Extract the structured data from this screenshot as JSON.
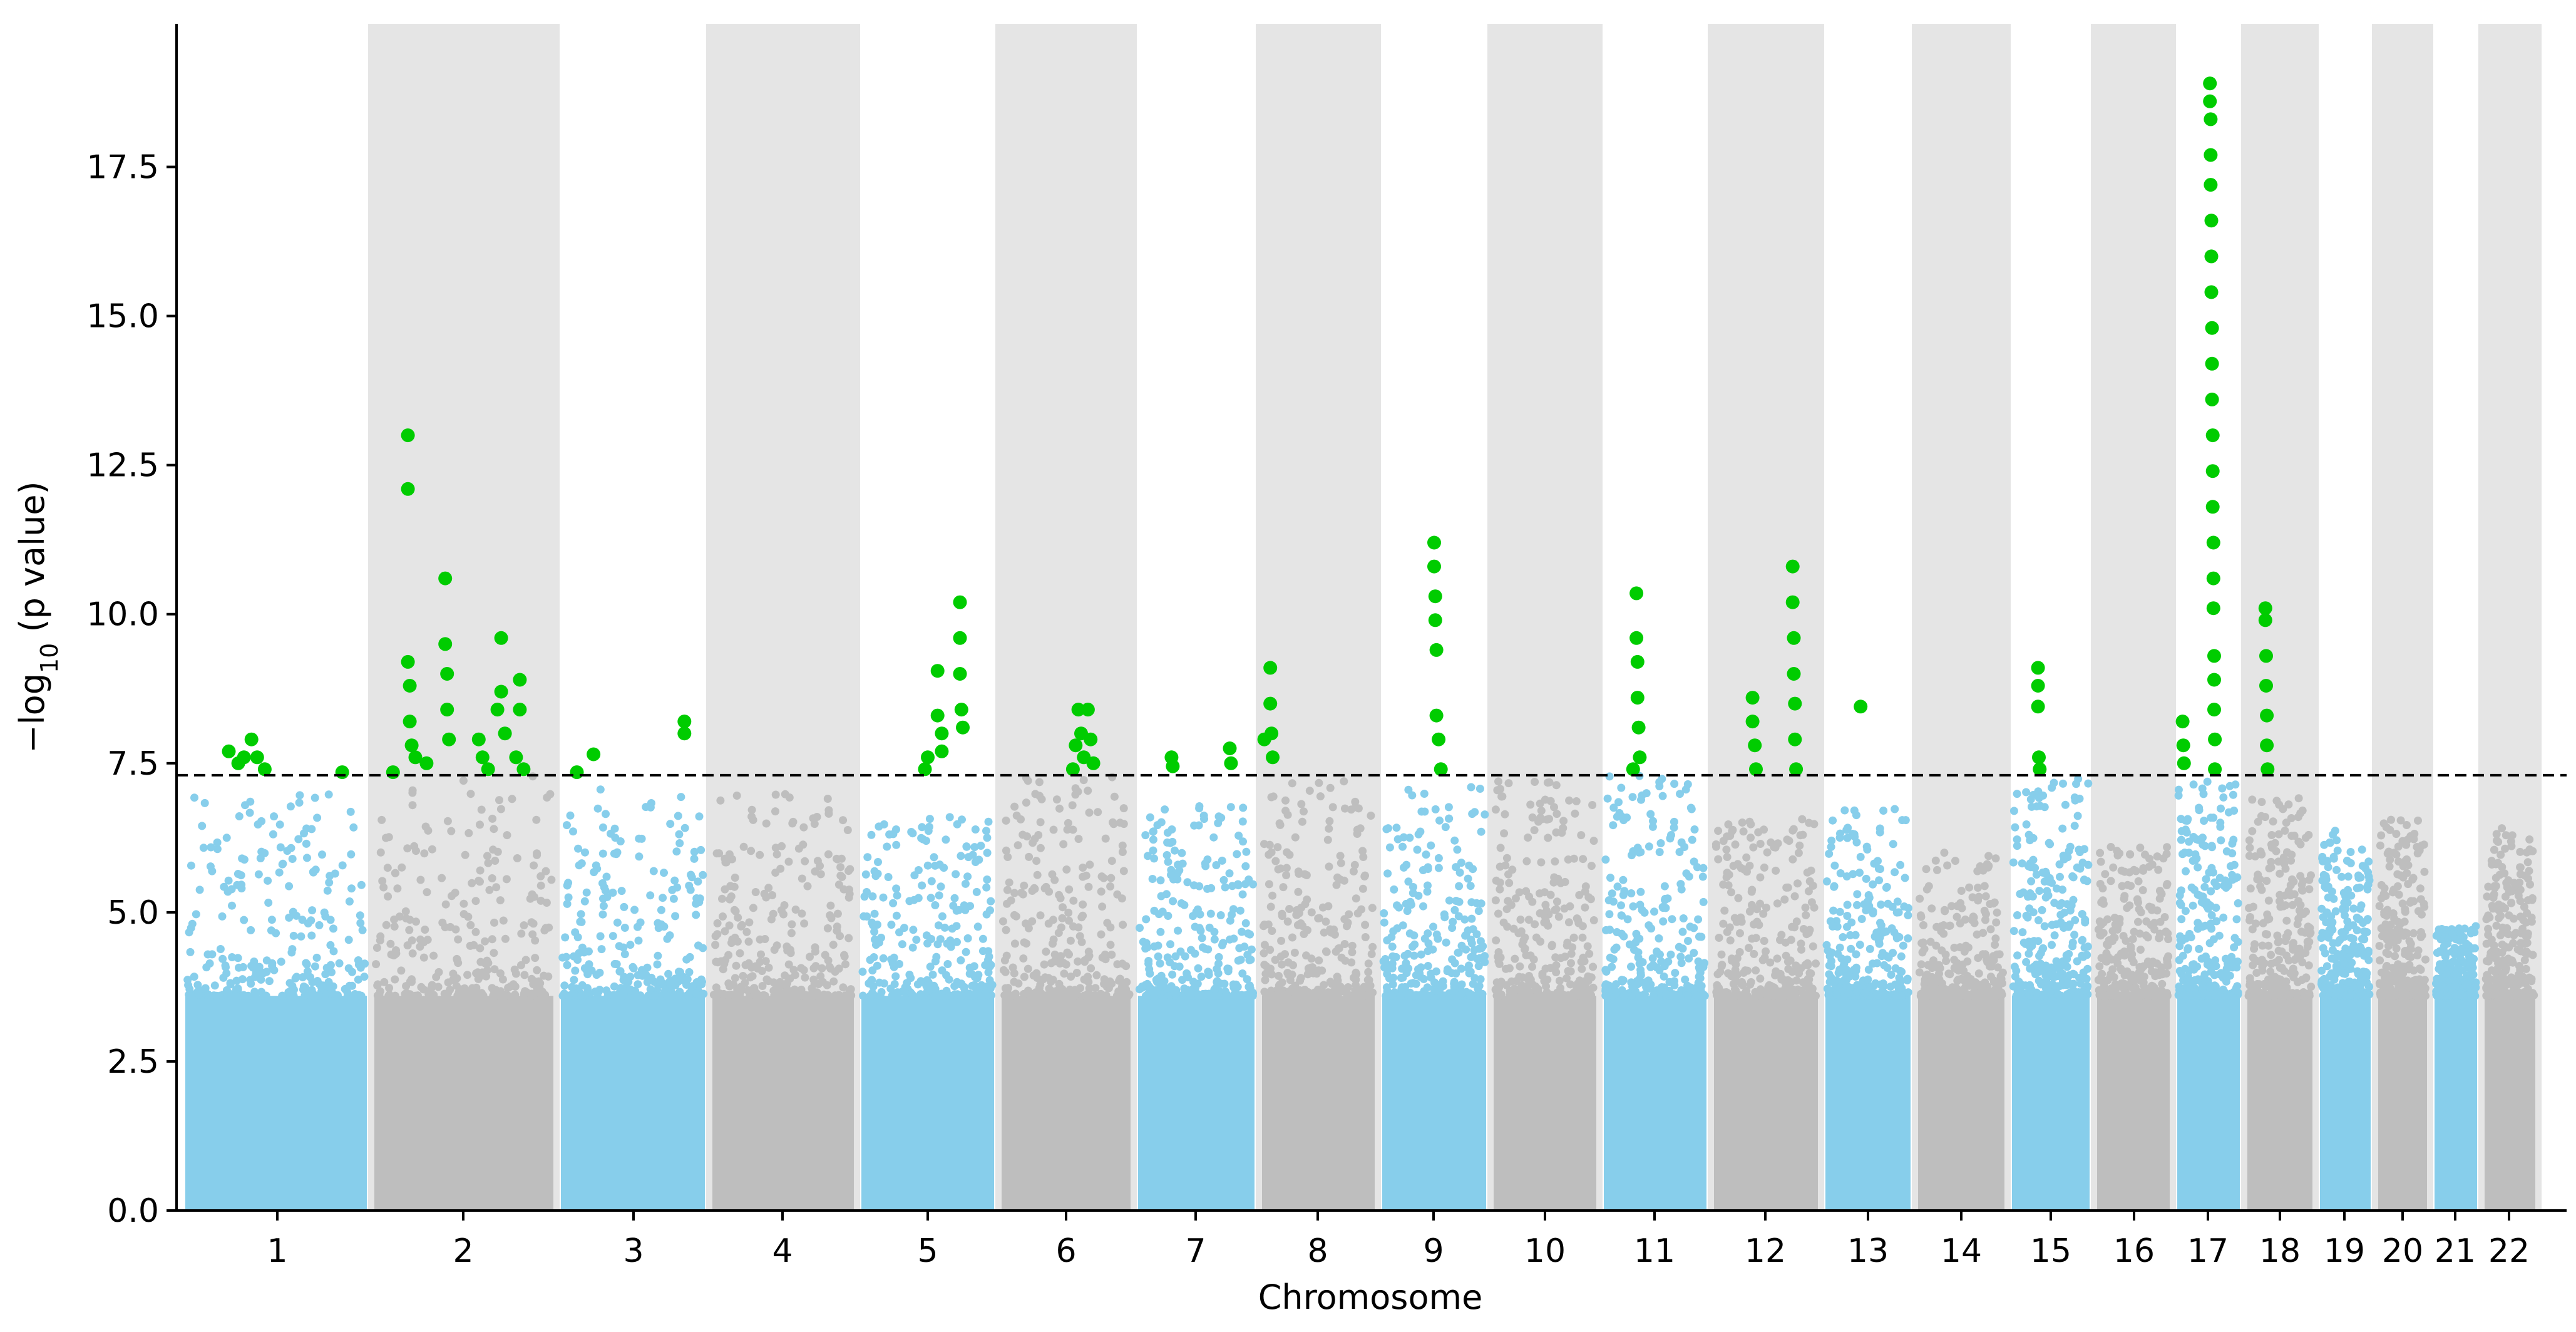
{
  "chart_data": {
    "type": "scatter",
    "subtype": "manhattan",
    "xlabel": "Chromosome",
    "ylabel_prefix": "−log",
    "ylabel_sub": "10",
    "ylabel_suffix": " (p value)",
    "ylim": [
      0,
      19.9
    ],
    "yticks": [
      "0.0",
      "2.5",
      "5.0",
      "7.5",
      "10.0",
      "12.5",
      "15.0",
      "17.5"
    ],
    "ytick_values": [
      0,
      2.5,
      5.0,
      7.5,
      10.0,
      12.5,
      15.0,
      17.5
    ],
    "significance_threshold": 7.3,
    "threshold_style": "dashed black line",
    "grid": false,
    "alternating_background": "light grey bands behind even chromosomes",
    "colors": {
      "odd_chromosome": "#87ceeb",
      "even_chromosome": "#bebebe",
      "significant": "#00cc00",
      "band": "#e5e5e5",
      "threshold": "#000000"
    },
    "chromosomes": [
      {
        "label": "1",
        "max_background": 7.0,
        "significant_hits": [
          [
            0.25,
            7.7
          ],
          [
            0.3,
            7.5
          ],
          [
            0.33,
            7.6
          ],
          [
            0.37,
            7.9
          ],
          [
            0.4,
            7.6
          ],
          [
            0.44,
            7.4
          ],
          [
            0.85,
            7.35
          ]
        ]
      },
      {
        "label": "2",
        "max_background": 7.3,
        "significant_hits": [
          [
            0.12,
            7.35
          ],
          [
            0.2,
            13.0
          ],
          [
            0.2,
            12.1
          ],
          [
            0.2,
            9.2
          ],
          [
            0.21,
            8.8
          ],
          [
            0.21,
            8.2
          ],
          [
            0.22,
            7.8
          ],
          [
            0.24,
            7.6
          ],
          [
            0.3,
            7.5
          ],
          [
            0.4,
            10.6
          ],
          [
            0.4,
            9.5
          ],
          [
            0.41,
            9.0
          ],
          [
            0.41,
            8.4
          ],
          [
            0.42,
            7.9
          ],
          [
            0.58,
            7.9
          ],
          [
            0.6,
            7.6
          ],
          [
            0.63,
            7.4
          ],
          [
            0.68,
            8.4
          ],
          [
            0.7,
            9.6
          ],
          [
            0.7,
            8.7
          ],
          [
            0.72,
            8.0
          ],
          [
            0.78,
            7.6
          ],
          [
            0.8,
            8.9
          ],
          [
            0.8,
            8.4
          ],
          [
            0.82,
            7.4
          ]
        ]
      },
      {
        "label": "3",
        "max_background": 7.1,
        "significant_hits": [
          [
            0.13,
            7.35
          ],
          [
            0.24,
            7.65
          ],
          [
            0.84,
            8.2
          ],
          [
            0.84,
            8.0
          ]
        ]
      },
      {
        "label": "4",
        "max_background": 7.0,
        "significant_hits": []
      },
      {
        "label": "5",
        "max_background": 6.6,
        "significant_hits": [
          [
            0.48,
            7.4
          ],
          [
            0.5,
            7.6
          ],
          [
            0.57,
            9.05
          ],
          [
            0.57,
            8.3
          ],
          [
            0.6,
            8.0
          ],
          [
            0.6,
            7.7
          ],
          [
            0.73,
            10.2
          ],
          [
            0.73,
            9.6
          ],
          [
            0.73,
            9.0
          ],
          [
            0.74,
            8.4
          ],
          [
            0.75,
            8.1
          ]
        ]
      },
      {
        "label": "6",
        "max_background": 7.3,
        "significant_hits": [
          [
            0.55,
            7.4
          ],
          [
            0.57,
            7.8
          ],
          [
            0.59,
            8.4
          ],
          [
            0.61,
            8.0
          ],
          [
            0.63,
            7.6
          ],
          [
            0.66,
            8.4
          ],
          [
            0.68,
            7.9
          ],
          [
            0.7,
            7.5
          ]
        ]
      },
      {
        "label": "7",
        "max_background": 6.8,
        "significant_hits": [
          [
            0.3,
            7.6
          ],
          [
            0.31,
            7.45
          ],
          [
            0.77,
            7.75
          ],
          [
            0.78,
            7.5
          ]
        ]
      },
      {
        "label": "8",
        "max_background": 7.2,
        "significant_hits": [
          [
            0.05,
            7.9
          ],
          [
            0.1,
            9.1
          ],
          [
            0.1,
            8.5
          ],
          [
            0.11,
            8.0
          ],
          [
            0.12,
            7.6
          ]
        ]
      },
      {
        "label": "9",
        "max_background": 7.2,
        "significant_hits": [
          [
            0.5,
            11.2
          ],
          [
            0.5,
            10.8
          ],
          [
            0.51,
            10.3
          ],
          [
            0.51,
            9.9
          ],
          [
            0.52,
            9.4
          ],
          [
            0.52,
            8.3
          ],
          [
            0.54,
            7.9
          ],
          [
            0.56,
            7.4
          ]
        ]
      },
      {
        "label": "10",
        "max_background": 7.2,
        "significant_hits": []
      },
      {
        "label": "11",
        "max_background": 7.3,
        "significant_hits": [
          [
            0.3,
            7.4
          ],
          [
            0.33,
            10.35
          ],
          [
            0.33,
            9.6
          ],
          [
            0.34,
            9.2
          ],
          [
            0.34,
            8.6
          ],
          [
            0.35,
            8.1
          ],
          [
            0.36,
            7.6
          ]
        ]
      },
      {
        "label": "12",
        "max_background": 6.6,
        "significant_hits": [
          [
            0.38,
            8.6
          ],
          [
            0.38,
            8.2
          ],
          [
            0.4,
            7.8
          ],
          [
            0.41,
            7.4
          ],
          [
            0.74,
            10.8
          ],
          [
            0.74,
            10.2
          ],
          [
            0.75,
            9.6
          ],
          [
            0.75,
            9.0
          ],
          [
            0.76,
            8.5
          ],
          [
            0.76,
            7.9
          ],
          [
            0.77,
            7.4
          ]
        ]
      },
      {
        "label": "13",
        "max_background": 6.8,
        "significant_hits": [
          [
            0.42,
            8.45
          ]
        ]
      },
      {
        "label": "14",
        "max_background": 6.0,
        "significant_hits": []
      },
      {
        "label": "15",
        "max_background": 7.3,
        "significant_hits": [
          [
            0.35,
            9.1
          ],
          [
            0.35,
            8.8
          ],
          [
            0.35,
            8.45
          ],
          [
            0.36,
            7.6
          ],
          [
            0.37,
            7.4
          ]
        ]
      },
      {
        "label": "16",
        "max_background": 6.1,
        "significant_hits": []
      },
      {
        "label": "17",
        "max_background": 7.2,
        "significant_hits": [
          [
            0.13,
            8.2
          ],
          [
            0.14,
            7.8
          ],
          [
            0.15,
            7.5
          ],
          [
            0.52,
            18.9
          ],
          [
            0.52,
            18.6
          ],
          [
            0.53,
            18.3
          ],
          [
            0.53,
            17.7
          ],
          [
            0.53,
            17.2
          ],
          [
            0.54,
            16.6
          ],
          [
            0.54,
            16.0
          ],
          [
            0.54,
            15.4
          ],
          [
            0.55,
            14.8
          ],
          [
            0.55,
            14.2
          ],
          [
            0.55,
            13.6
          ],
          [
            0.56,
            13.0
          ],
          [
            0.56,
            12.4
          ],
          [
            0.56,
            11.8
          ],
          [
            0.57,
            11.2
          ],
          [
            0.57,
            10.6
          ],
          [
            0.57,
            10.1
          ],
          [
            0.58,
            9.3
          ],
          [
            0.58,
            8.9
          ],
          [
            0.58,
            8.4
          ],
          [
            0.59,
            7.9
          ],
          [
            0.59,
            7.4
          ]
        ]
      },
      {
        "label": "18",
        "max_background": 7.0,
        "significant_hits": [
          [
            0.3,
            10.1
          ],
          [
            0.3,
            9.9
          ],
          [
            0.31,
            9.3
          ],
          [
            0.31,
            8.8
          ],
          [
            0.32,
            8.3
          ],
          [
            0.32,
            7.8
          ],
          [
            0.33,
            7.4
          ]
        ]
      },
      {
        "label": "19",
        "max_background": 6.5,
        "significant_hits": []
      },
      {
        "label": "20",
        "max_background": 6.6,
        "significant_hits": []
      },
      {
        "label": "21",
        "max_background": 4.8,
        "significant_hits": []
      },
      {
        "label": "22",
        "max_background": 6.5,
        "significant_hits": []
      }
    ]
  }
}
